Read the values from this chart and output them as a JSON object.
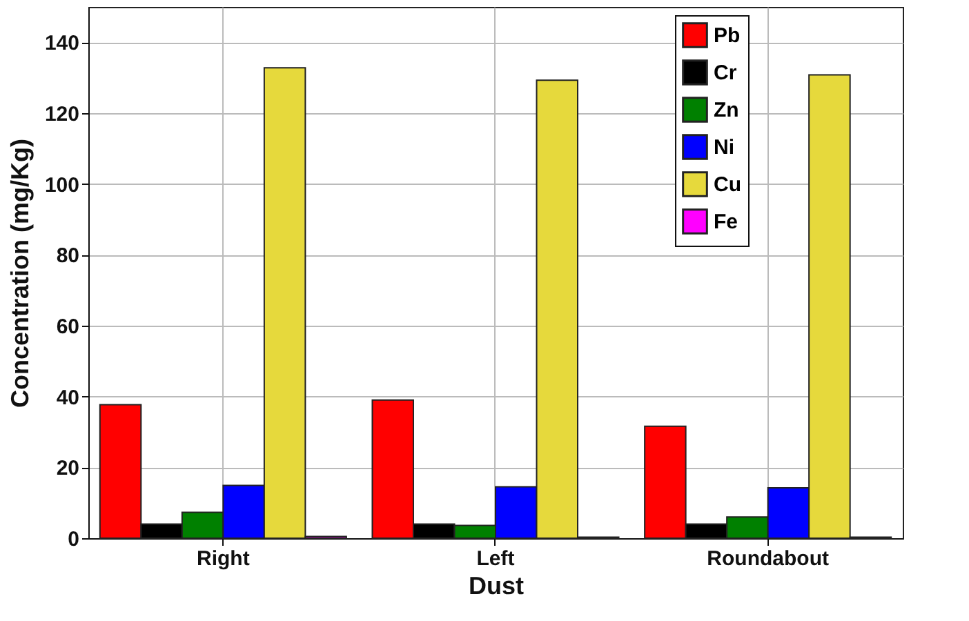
{
  "chart_data": {
    "type": "bar",
    "xlabel": "Dust",
    "ylabel": "Concentration (mg/Kg)",
    "categories": [
      "Right",
      "Left",
      "Roundabout"
    ],
    "series": [
      {
        "name": "Pb",
        "color": "#ff0000",
        "values": [
          37.7,
          39,
          31.6
        ]
      },
      {
        "name": "Cr",
        "color": "#000000",
        "values": [
          4,
          4,
          4
        ]
      },
      {
        "name": "Zn",
        "color": "#008000",
        "values": [
          7.3,
          3.6,
          6
        ]
      },
      {
        "name": "Ni",
        "color": "#0000ff",
        "values": [
          14.9,
          14.5,
          14.2
        ]
      },
      {
        "name": "Cu",
        "color": "#e6d93c",
        "values": [
          132.8,
          129.3,
          130.8
        ]
      },
      {
        "name": "Fe",
        "color": "#ff00ff",
        "values": [
          0.5,
          0.3,
          0.3
        ]
      }
    ],
    "ylim": [
      0,
      150
    ],
    "yticks": [
      0,
      20,
      40,
      60,
      80,
      100,
      120,
      140
    ],
    "grid": true,
    "legend": "top right"
  }
}
